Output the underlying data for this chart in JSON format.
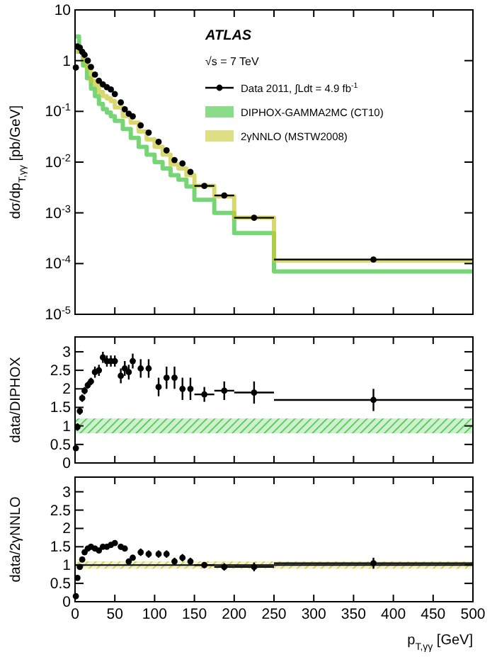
{
  "chart_data": [
    {
      "type": "scatter",
      "ylabel": "dσ/dp$_{T,γγ}$ [pb/GeV]",
      "annotations": [
        "ATLAS",
        "√s = 7 TeV"
      ],
      "log": "y",
      "legend": "top right",
      "tick_labels": "y",
      "marker": "circle",
      "xlim": [
        0,
        500
      ],
      "xticks": [
        0,
        50,
        100,
        150,
        200,
        250,
        300,
        350,
        400,
        450,
        500
      ],
      "ylim": [
        1e-05,
        10
      ],
      "yticks": [
        {
          "value": 1e-05,
          "label": "10$^{-5}$"
        },
        {
          "value": 0.0001,
          "label": "10$^{-4}$"
        },
        {
          "value": 0.001,
          "label": "10$^{-3}$"
        },
        {
          "value": 0.01,
          "label": "10$^{-2}$"
        },
        {
          "value": 0.1,
          "label": "10$^{-1}$"
        },
        1,
        10
      ],
      "series": [
        {
          "name": "Data 2011, ∫Ldt = 4.9 fb$^{-1}$",
          "color": "#000000",
          "x": [
            1,
            3,
            6,
            9,
            12,
            16,
            20,
            25,
            30,
            35,
            40,
            45,
            50,
            57.5,
            62.5,
            67.5,
            72.5,
            82.5,
            92.5,
            105,
            115,
            125,
            135,
            145,
            162.5,
            187.5,
            225,
            375
          ],
          "values": [
            0.73,
            1.9,
            1.8,
            1.5,
            1.3,
            1.0,
            0.75,
            0.53,
            0.4,
            0.34,
            0.3,
            0.27,
            0.22,
            0.15,
            0.11,
            0.09,
            0.08,
            0.053,
            0.038,
            0.025,
            0.017,
            0.011,
            0.0094,
            0.0064,
            0.0034,
            0.0022,
            0.0008,
            0.00012
          ],
          "xerrors": [
            null,
            null,
            null,
            null,
            null,
            null,
            null,
            null,
            null,
            null,
            null,
            null,
            null,
            null,
            null,
            null,
            null,
            null,
            null,
            null,
            null,
            null,
            null,
            null,
            12.5,
            12.5,
            25,
            125
          ]
        },
        {
          "name": "DIPHOX-GAMMA2MC (CT10)",
          "type": "step",
          "marker": "none",
          "color": "#3cc43c",
          "x": [
            0,
            5,
            10,
            15,
            20,
            25,
            30,
            35,
            40,
            45,
            50,
            60,
            70,
            80,
            90,
            100,
            110,
            120,
            130,
            140,
            150,
            175,
            200,
            250,
            500
          ],
          "values": [
            3,
            1.5,
            0.8,
            0.45,
            0.28,
            0.2,
            0.14,
            0.11,
            0.095,
            0.08,
            0.065,
            0.045,
            0.03,
            0.02,
            0.014,
            0.01,
            0.0075,
            0.0055,
            0.0045,
            0.0033,
            0.0018,
            0.001,
            0.0004,
            7e-05,
            7e-05
          ]
        },
        {
          "name": "2γNNLO (MSTW2008)",
          "type": "step",
          "marker": "none",
          "color": "#c8c832",
          "x": [
            0,
            5,
            10,
            15,
            20,
            25,
            30,
            35,
            40,
            45,
            50,
            60,
            70,
            80,
            90,
            100,
            110,
            120,
            130,
            140,
            150,
            175,
            200,
            250,
            500
          ],
          "values": [
            1.5,
            1.5,
            1.0,
            0.7,
            0.4,
            0.33,
            0.24,
            0.2,
            0.18,
            0.16,
            0.12,
            0.08,
            0.06,
            0.04,
            0.028,
            0.02,
            0.014,
            0.009,
            0.0075,
            0.0055,
            0.0034,
            0.0021,
            0.0008,
            0.000115,
            0.000115
          ]
        }
      ]
    },
    {
      "type": "scatter",
      "ylabel": "data/DIPHOX",
      "tick_labels": "y",
      "marker": "circle",
      "xlim": [
        0,
        500
      ],
      "xticks": [
        0,
        50,
        100,
        150,
        200,
        250,
        300,
        350,
        400,
        450,
        500
      ],
      "ylim": [
        0,
        3.4
      ],
      "yticks": [
        0,
        0.5,
        1,
        1.5,
        2,
        2.5,
        3
      ],
      "bands": [
        {
          "axis": "y",
          "from": 0.8,
          "to": 1.2,
          "color": "#3cc43c"
        }
      ],
      "series": [
        {
          "color": "#000000",
          "x": [
            1,
            3,
            6,
            9,
            12,
            16,
            20,
            25,
            30,
            35,
            40,
            45,
            50,
            57.5,
            62.5,
            67.5,
            72.5,
            82.5,
            92.5,
            105,
            115,
            125,
            135,
            145,
            162.5,
            187.5,
            225,
            375
          ],
          "values": [
            0.4,
            0.97,
            1.4,
            1.75,
            1.95,
            2.1,
            2.2,
            2.45,
            2.5,
            2.85,
            2.75,
            2.75,
            2.75,
            2.35,
            2.55,
            2.45,
            2.75,
            2.55,
            2.55,
            2.05,
            2.3,
            2.3,
            2.0,
            2.0,
            1.85,
            1.95,
            1.9,
            1.7
          ],
          "errors": [
            0.05,
            0.1,
            0.1,
            0.1,
            0.1,
            0.1,
            0.1,
            0.15,
            0.15,
            0.15,
            0.15,
            0.15,
            0.15,
            0.2,
            0.2,
            0.2,
            0.2,
            0.25,
            0.25,
            0.25,
            0.3,
            0.3,
            0.3,
            0.3,
            0.2,
            0.25,
            0.3,
            0.3
          ],
          "xerrors": [
            null,
            null,
            null,
            null,
            null,
            null,
            null,
            null,
            null,
            null,
            null,
            null,
            null,
            null,
            null,
            null,
            null,
            null,
            null,
            null,
            null,
            null,
            null,
            null,
            12.5,
            12.5,
            25,
            125
          ]
        }
      ]
    },
    {
      "type": "scatter",
      "ylabel": "data/2γNNLO",
      "xlabel": "p$_{T,γγ}$ [GeV]",
      "marker": "circle",
      "xlim": [
        0,
        500
      ],
      "xticks": [
        0,
        50,
        100,
        150,
        200,
        250,
        300,
        350,
        400,
        450,
        500
      ],
      "ylim": [
        0,
        3.4
      ],
      "yticks": [
        0,
        0.5,
        1,
        1.5,
        2,
        2.5,
        3
      ],
      "bands": [
        {
          "axis": "y",
          "from": 0.9,
          "to": 1.1,
          "color": "#c8c832"
        }
      ],
      "ref_lines": [
        {
          "axis": "y",
          "value": 1,
          "color": "#000000"
        }
      ],
      "series": [
        {
          "color": "#000000",
          "x": [
            1,
            3,
            6,
            9,
            12,
            16,
            20,
            25,
            30,
            35,
            40,
            45,
            50,
            57.5,
            62.5,
            67.5,
            72.5,
            82.5,
            92.5,
            105,
            115,
            125,
            135,
            145,
            162.5,
            187.5,
            225,
            375
          ],
          "values": [
            0.15,
            0.65,
            0.95,
            1.15,
            1.35,
            1.45,
            1.5,
            1.45,
            1.4,
            1.5,
            1.5,
            1.55,
            1.6,
            1.5,
            1.45,
            1.1,
            1.2,
            1.35,
            1.3,
            1.3,
            1.3,
            1.1,
            1.2,
            1.1,
            1.0,
            0.95,
            0.95,
            1.05
          ],
          "errors": [
            0.05,
            0.05,
            0.05,
            0.05,
            0.05,
            0.05,
            0.05,
            0.07,
            0.07,
            0.07,
            0.07,
            0.07,
            0.07,
            0.08,
            0.08,
            0.08,
            0.08,
            0.1,
            0.1,
            0.1,
            0.1,
            0.1,
            0.1,
            0.1,
            0.08,
            0.1,
            0.12,
            0.15
          ],
          "xerrors": [
            null,
            null,
            null,
            null,
            null,
            null,
            null,
            null,
            null,
            null,
            null,
            null,
            null,
            null,
            null,
            null,
            null,
            null,
            null,
            null,
            null,
            null,
            null,
            null,
            12.5,
            12.5,
            25,
            125
          ]
        }
      ]
    }
  ]
}
